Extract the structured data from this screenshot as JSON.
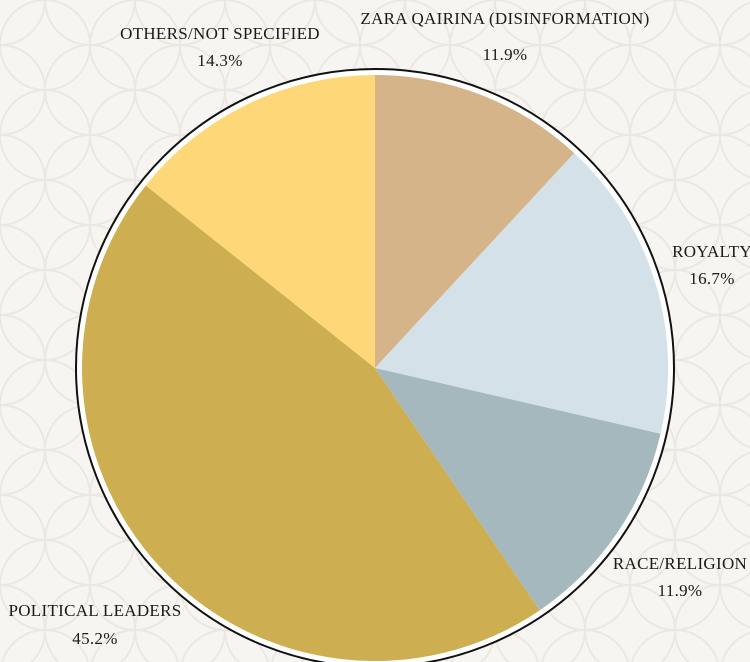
{
  "chart_data": {
    "type": "pie",
    "categories": [
      "ZARA QAIRINA (DISINFORMATION)",
      "ROYALTY",
      "RACE/RELIGION",
      "POLITICAL LEADERS",
      "OTHERS/NOT SPECIFIED"
    ],
    "values": [
      11.9,
      16.7,
      11.9,
      45.2,
      14.3
    ],
    "value_labels": [
      "11.9%",
      "16.7%",
      "11.9%",
      "45.2%",
      "14.3%"
    ],
    "colors": [
      "#d4b488",
      "#d4e1e8",
      "#a5b8be",
      "#cdae50",
      "#fdd778"
    ]
  }
}
